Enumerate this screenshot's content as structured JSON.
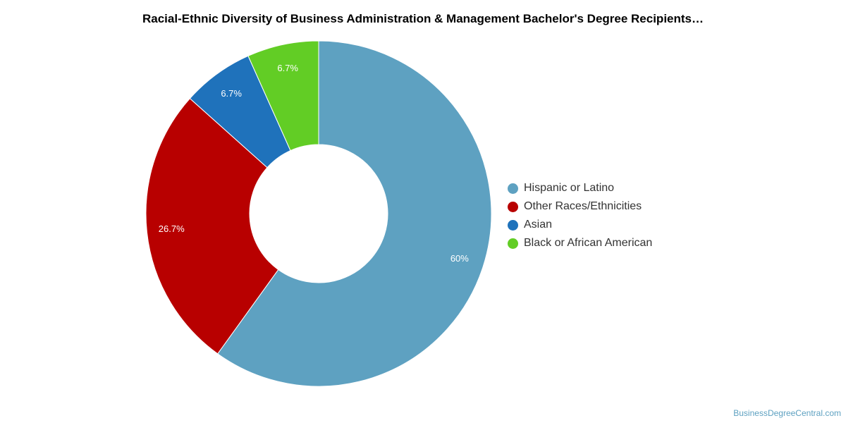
{
  "chart_data": {
    "type": "pie",
    "title": "Racial-Ethnic Diversity of Business Administration & Management Bachelor's Degree Recipients…",
    "donut": true,
    "legend_position": "right",
    "slices": [
      {
        "name": "Hispanic or Latino",
        "value": 60,
        "label": "60%",
        "color": "#5ea1c1"
      },
      {
        "name": "Other Races/Ethnicities",
        "value": 26.7,
        "label": "26.7%",
        "color": "#b80000"
      },
      {
        "name": "Asian",
        "value": 6.7,
        "label": "6.7%",
        "color": "#1f72bb"
      },
      {
        "name": "Black or African American",
        "value": 6.7,
        "label": "6.7%",
        "color": "#62cd25"
      }
    ]
  },
  "footer": {
    "source": "BusinessDegreeCentral.com"
  }
}
